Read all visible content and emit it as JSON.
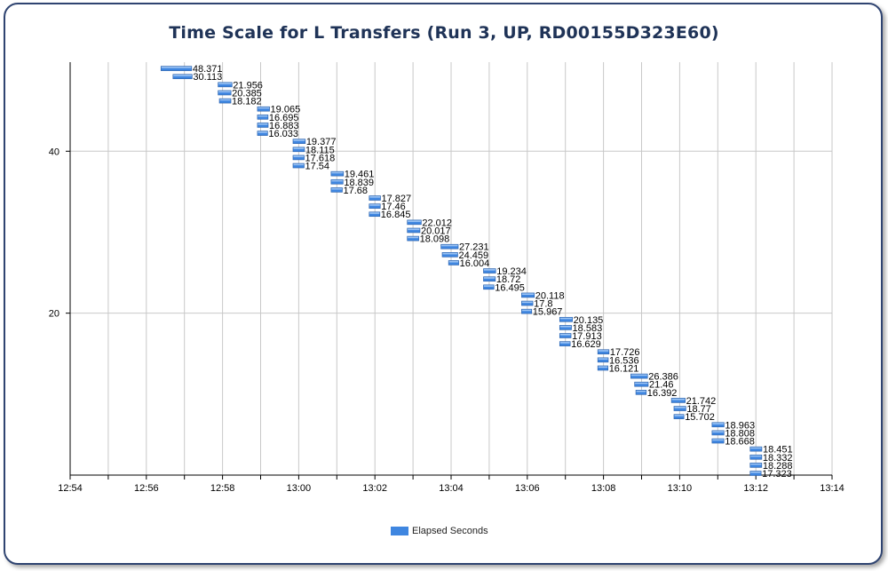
{
  "chart_data": {
    "type": "bar",
    "orientation": "horizontal-time-range",
    "title": "Time Scale for L Transfers (Run 3, UP, RD00155D323E60)",
    "xlabel": "",
    "ylabel": "",
    "x_ticks": [
      "12:54",
      "12:56",
      "12:58",
      "13:00",
      "13:02",
      "13:04",
      "13:06",
      "13:08",
      "13:10",
      "13:12",
      "13:14"
    ],
    "xlim": [
      "12:54",
      "13:14"
    ],
    "y_ticks": [
      20,
      40
    ],
    "ylim": [
      0,
      51
    ],
    "grid": true,
    "legend": {
      "position": "bottom-center",
      "entries": [
        "Elapsed Seconds"
      ]
    },
    "colors": {
      "bar": "#3f86e0",
      "bar_highlight": "#9cc4f4",
      "bar_shade": "#2a5fa8",
      "grid": "#c8c8c8"
    },
    "series": [
      {
        "name": "Elapsed Seconds",
        "points": [
          {
            "y": 50,
            "start": "12:56:23",
            "value": 48.371,
            "label": "48.371"
          },
          {
            "y": 49,
            "start": "12:56:42",
            "value": 30.113,
            "label": "30.113"
          },
          {
            "y": 48,
            "start": "12:57:53",
            "value": 21.956,
            "label": "21.956"
          },
          {
            "y": 47,
            "start": "12:57:53",
            "value": 20.385,
            "label": "20.385"
          },
          {
            "y": 46,
            "start": "12:57:55",
            "value": 18.182,
            "label": "18.182"
          },
          {
            "y": 45,
            "start": "12:58:55",
            "value": 19.065,
            "label": "19.065"
          },
          {
            "y": 44,
            "start": "12:58:55",
            "value": 16.695,
            "label": "16.695"
          },
          {
            "y": 43,
            "start": "12:58:55",
            "value": 16.883,
            "label": "16.883"
          },
          {
            "y": 42,
            "start": "12:58:55",
            "value": 16.033,
            "label": "16.033"
          },
          {
            "y": 41,
            "start": "12:59:51",
            "value": 19.377,
            "label": "19.377"
          },
          {
            "y": 40,
            "start": "12:59:51",
            "value": 18.115,
            "label": "18.115"
          },
          {
            "y": 39,
            "start": "12:59:51",
            "value": 17.618,
            "label": "17.618"
          },
          {
            "y": 38,
            "start": "12:59:51",
            "value": 17.54,
            "label": "17.54"
          },
          {
            "y": 37,
            "start": "13:00:51",
            "value": 19.461,
            "label": "19.461"
          },
          {
            "y": 36,
            "start": "13:00:51",
            "value": 18.839,
            "label": "18.839"
          },
          {
            "y": 35,
            "start": "13:00:51",
            "value": 17.68,
            "label": "17.68"
          },
          {
            "y": 34,
            "start": "13:01:51",
            "value": 17.827,
            "label": "17.827"
          },
          {
            "y": 33,
            "start": "13:01:51",
            "value": 17.46,
            "label": "17.46"
          },
          {
            "y": 32,
            "start": "13:01:51",
            "value": 16.845,
            "label": "16.845"
          },
          {
            "y": 31,
            "start": "13:02:51",
            "value": 22.012,
            "label": "22.012"
          },
          {
            "y": 30,
            "start": "13:02:51",
            "value": 20.017,
            "label": "20.017"
          },
          {
            "y": 29,
            "start": "13:02:51",
            "value": 18.098,
            "label": "18.098"
          },
          {
            "y": 28,
            "start": "13:03:44",
            "value": 27.231,
            "label": "27.231"
          },
          {
            "y": 27,
            "start": "13:03:46",
            "value": 24.459,
            "label": "24.459"
          },
          {
            "y": 26,
            "start": "13:03:56",
            "value": 16.004,
            "label": "16.004"
          },
          {
            "y": 25,
            "start": "13:04:51",
            "value": 19.234,
            "label": "19.234"
          },
          {
            "y": 24,
            "start": "13:04:51",
            "value": 18.72,
            "label": "18.72"
          },
          {
            "y": 23,
            "start": "13:04:51",
            "value": 16.495,
            "label": "16.495"
          },
          {
            "y": 22,
            "start": "13:05:51",
            "value": 20.118,
            "label": "20.118"
          },
          {
            "y": 21,
            "start": "13:05:51",
            "value": 17.8,
            "label": "17.8"
          },
          {
            "y": 20,
            "start": "13:05:51",
            "value": 15.967,
            "label": "15.967"
          },
          {
            "y": 19,
            "start": "13:06:51",
            "value": 20.135,
            "label": "20.135"
          },
          {
            "y": 18,
            "start": "13:06:51",
            "value": 18.583,
            "label": "18.583"
          },
          {
            "y": 17,
            "start": "13:06:51",
            "value": 17.913,
            "label": "17.913"
          },
          {
            "y": 16,
            "start": "13:06:51",
            "value": 16.629,
            "label": "16.629"
          },
          {
            "y": 15,
            "start": "13:07:51",
            "value": 17.726,
            "label": "17.726"
          },
          {
            "y": 14,
            "start": "13:07:51",
            "value": 16.536,
            "label": "16.536"
          },
          {
            "y": 13,
            "start": "13:07:51",
            "value": 16.121,
            "label": "16.121"
          },
          {
            "y": 12,
            "start": "13:08:43",
            "value": 26.386,
            "label": "26.386"
          },
          {
            "y": 11,
            "start": "13:08:49",
            "value": 21.46,
            "label": "21.46"
          },
          {
            "y": 10,
            "start": "13:08:51",
            "value": 16.392,
            "label": "16.392"
          },
          {
            "y": 9,
            "start": "13:09:47",
            "value": 21.742,
            "label": "21.742"
          },
          {
            "y": 8,
            "start": "13:09:51",
            "value": 18.77,
            "label": "18.77"
          },
          {
            "y": 7,
            "start": "13:09:51",
            "value": 15.702,
            "label": "15.702"
          },
          {
            "y": 6,
            "start": "13:10:51",
            "value": 18.963,
            "label": "18.963"
          },
          {
            "y": 5,
            "start": "13:10:51",
            "value": 18.808,
            "label": "18.808"
          },
          {
            "y": 4,
            "start": "13:10:51",
            "value": 18.668,
            "label": "18.668"
          },
          {
            "y": 3,
            "start": "13:11:51",
            "value": 18.451,
            "label": "18.451"
          },
          {
            "y": 2,
            "start": "13:11:51",
            "value": 18.332,
            "label": "18.332"
          },
          {
            "y": 1,
            "start": "13:11:51",
            "value": 18.288,
            "label": "18.288"
          },
          {
            "y": 0,
            "start": "13:11:51",
            "value": 17.323,
            "label": "17.323"
          }
        ]
      }
    ]
  }
}
